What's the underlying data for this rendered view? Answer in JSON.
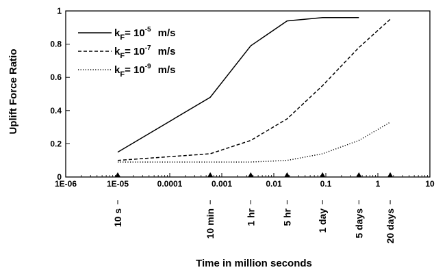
{
  "chart_data": {
    "type": "line",
    "xscale": "log",
    "xlim": [
      1e-06,
      10
    ],
    "ylim": [
      0,
      1
    ],
    "xlabel": "Time in million seconds",
    "ylabel": "Uplift Force Ratio",
    "x_ticks": [
      {
        "value": 1e-06,
        "label": "1E-06"
      },
      {
        "value": 1e-05,
        "label": "1E-05"
      },
      {
        "value": 0.0001,
        "label": "0.0001"
      },
      {
        "value": 0.001,
        "label": "0.001"
      },
      {
        "value": 0.01,
        "label": "0.01"
      },
      {
        "value": 0.1,
        "label": "0.1"
      },
      {
        "value": 1,
        "label": "1"
      },
      {
        "value": 10,
        "label": "10"
      }
    ],
    "y_ticks": [
      {
        "value": 0,
        "label": "0"
      },
      {
        "value": 0.2,
        "label": "0.2"
      },
      {
        "value": 0.4,
        "label": "0.4"
      },
      {
        "value": 0.6,
        "label": "0.6"
      },
      {
        "value": 0.8,
        "label": "0.8"
      },
      {
        "value": 1,
        "label": "1"
      }
    ],
    "x": [
      1e-05,
      0.0006,
      0.0036,
      0.018,
      0.0864,
      0.432,
      1.728
    ],
    "series": [
      {
        "name": "10^-5 m/s",
        "k_label": "k",
        "k_sub": "F",
        "eq": "= 10",
        "exp": "-5",
        "unit": "m/s",
        "style": "solid",
        "values": [
          0.15,
          0.48,
          0.79,
          0.94,
          0.96,
          0.96,
          null
        ]
      },
      {
        "name": "10^-7 m/s",
        "k_label": "k",
        "k_sub": "F",
        "eq": "= 10",
        "exp": "-7",
        "unit": "m/s",
        "style": "dashed",
        "values": [
          0.1,
          0.14,
          0.22,
          0.35,
          0.55,
          0.78,
          0.95
        ]
      },
      {
        "name": "10^-9 m/s",
        "k_label": "k",
        "k_sub": "F",
        "eq": "= 10",
        "exp": "-9",
        "unit": "m/s",
        "style": "dotted",
        "values": [
          0.09,
          0.09,
          0.09,
          0.1,
          0.14,
          0.22,
          0.33
        ]
      }
    ],
    "annotations": [
      {
        "x": 1e-05,
        "label": "10 s"
      },
      {
        "x": 0.0006,
        "label": "10 min"
      },
      {
        "x": 0.0036,
        "label": "1 hr"
      },
      {
        "x": 0.018,
        "label": "5 hr"
      },
      {
        "x": 0.0864,
        "label": "1 day"
      },
      {
        "x": 0.432,
        "label": "5 days"
      },
      {
        "x": 1.728,
        "label": "20 days"
      }
    ],
    "legend_position": "top-left",
    "grid": false
  }
}
